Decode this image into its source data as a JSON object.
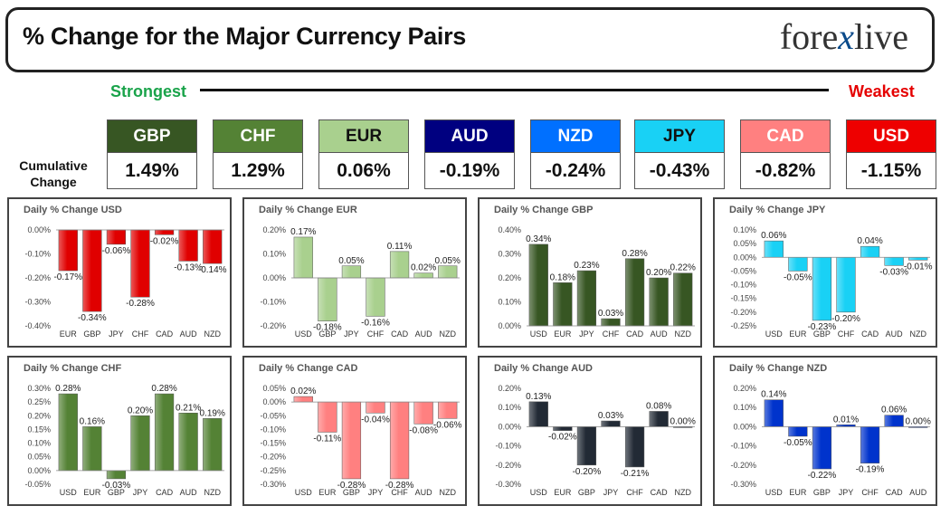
{
  "header": {
    "title": "% Change for the Major Currency Pairs",
    "logo_left": "fore",
    "logo_x": "x",
    "logo_right": "live"
  },
  "scale": {
    "strongest": "Strongest",
    "weakest": "Weakest"
  },
  "cumulative": {
    "label_line1": "Cumulative",
    "label_line2": "Change",
    "items": [
      {
        "ccy": "GBP",
        "value": "1.49%",
        "head_bg": "#375623",
        "head_fg": "#ffffff",
        "val_fg": "#111111"
      },
      {
        "ccy": "CHF",
        "value": "1.29%",
        "head_bg": "#548235",
        "head_fg": "#ffffff",
        "val_fg": "#111111"
      },
      {
        "ccy": "EUR",
        "value": "0.06%",
        "head_bg": "#a9d08e",
        "head_fg": "#111111",
        "val_fg": "#111111"
      },
      {
        "ccy": "AUD",
        "value": "-0.19%",
        "head_bg": "#000080",
        "head_fg": "#ffffff",
        "val_fg": "#111111"
      },
      {
        "ccy": "NZD",
        "value": "-0.24%",
        "head_bg": "#0070ff",
        "head_fg": "#ffffff",
        "val_fg": "#111111"
      },
      {
        "ccy": "JPY",
        "value": "-0.43%",
        "head_bg": "#19d1f5",
        "head_fg": "#111111",
        "val_fg": "#111111"
      },
      {
        "ccy": "CAD",
        "value": "-0.82%",
        "head_bg": "#ff8080",
        "head_fg": "#ffffff",
        "val_fg": "#111111"
      },
      {
        "ccy": "USD",
        "value": "-1.15%",
        "head_bg": "#ee0000",
        "head_fg": "#ffffff",
        "val_fg": "#111111"
      }
    ]
  },
  "chart_data": [
    {
      "type": "bar",
      "title": "Daily % Change USD",
      "color": "#e00000",
      "categories": [
        "EUR",
        "GBP",
        "JPY",
        "CHF",
        "CAD",
        "AUD",
        "NZD"
      ],
      "values": [
        -0.17,
        -0.34,
        -0.06,
        -0.28,
        -0.02,
        -0.13,
        -0.14
      ],
      "labels": [
        "-0.17%",
        "-0.34%",
        "-0.06%",
        "-0.28%",
        "-0.02%",
        "-0.13%",
        "-0.14%"
      ],
      "ylim": [
        -0.4,
        0.0
      ],
      "yticks": [
        0.0,
        -0.1,
        -0.2,
        -0.3,
        -0.4
      ],
      "ytick_labels": [
        "0.00%",
        "-0.10%",
        "-0.20%",
        "-0.30%",
        "-0.40%"
      ]
    },
    {
      "type": "bar",
      "title": "Daily % Change EUR",
      "color": "#a9d08e",
      "categories": [
        "USD",
        "GBP",
        "JPY",
        "CHF",
        "CAD",
        "AUD",
        "NZD"
      ],
      "values": [
        0.17,
        -0.18,
        0.05,
        -0.16,
        0.11,
        0.02,
        0.05
      ],
      "labels": [
        "0.17%",
        "-0.18%",
        "0.05%",
        "-0.16%",
        "0.11%",
        "0.02%",
        "0.05%"
      ],
      "ylim": [
        -0.2,
        0.2
      ],
      "yticks": [
        0.2,
        0.1,
        0.0,
        -0.1,
        -0.2
      ],
      "ytick_labels": [
        "0.20%",
        "0.10%",
        "0.00%",
        "-0.10%",
        "-0.20%"
      ]
    },
    {
      "type": "bar",
      "title": "Daily % Change GBP",
      "color": "#375623",
      "categories": [
        "USD",
        "EUR",
        "JPY",
        "CHF",
        "CAD",
        "AUD",
        "NZD"
      ],
      "values": [
        0.34,
        0.18,
        0.23,
        0.03,
        0.28,
        0.2,
        0.22
      ],
      "labels": [
        "0.34%",
        "0.18%",
        "0.23%",
        "0.03%",
        "0.28%",
        "0.20%",
        "0.22%"
      ],
      "ylim": [
        0.0,
        0.4
      ],
      "yticks": [
        0.4,
        0.3,
        0.2,
        0.1,
        0.0
      ],
      "ytick_labels": [
        "0.40%",
        "0.30%",
        "0.20%",
        "0.10%",
        "0.00%"
      ]
    },
    {
      "type": "bar",
      "title": "Daily % Change JPY",
      "color": "#19d1f5",
      "categories": [
        "USD",
        "EUR",
        "GBP",
        "CHF",
        "CAD",
        "AUD",
        "NZD"
      ],
      "values": [
        0.06,
        -0.05,
        -0.23,
        -0.2,
        0.04,
        -0.03,
        -0.01
      ],
      "labels": [
        "0.06%",
        "-0.05%",
        "-0.23%",
        "-0.20%",
        "0.04%",
        "-0.03%",
        "-0.01%"
      ],
      "ylim": [
        -0.25,
        0.1
      ],
      "yticks": [
        0.1,
        0.05,
        0.0,
        -0.05,
        -0.1,
        -0.15,
        -0.2,
        -0.25
      ],
      "ytick_labels": [
        "0.10%",
        "0.05%",
        "0.00%",
        "-0.05%",
        "-0.10%",
        "-0.15%",
        "-0.20%",
        "-0.25%"
      ]
    },
    {
      "type": "bar",
      "title": "Daily % Change CHF",
      "color": "#548235",
      "categories": [
        "USD",
        "EUR",
        "GBP",
        "JPY",
        "CAD",
        "AUD",
        "NZD"
      ],
      "values": [
        0.28,
        0.16,
        -0.03,
        0.2,
        0.28,
        0.21,
        0.19
      ],
      "labels": [
        "0.28%",
        "0.16%",
        "-0.03%",
        "0.20%",
        "0.28%",
        "0.21%",
        "0.19%"
      ],
      "ylim": [
        -0.05,
        0.3
      ],
      "yticks": [
        0.3,
        0.25,
        0.2,
        0.15,
        0.1,
        0.05,
        0.0,
        -0.05
      ],
      "ytick_labels": [
        "0.30%",
        "0.25%",
        "0.20%",
        "0.15%",
        "0.10%",
        "0.05%",
        "0.00%",
        "-0.05%"
      ]
    },
    {
      "type": "bar",
      "title": "Daily % Change CAD",
      "color": "#ff8080",
      "categories": [
        "USD",
        "EUR",
        "GBP",
        "JPY",
        "CHF",
        "AUD",
        "NZD"
      ],
      "values": [
        0.02,
        -0.11,
        -0.28,
        -0.04,
        -0.28,
        -0.08,
        -0.06
      ],
      "labels": [
        "0.02%",
        "-0.11%",
        "-0.28%",
        "-0.04%",
        "-0.28%",
        "-0.08%",
        "-0.06%"
      ],
      "ylim": [
        -0.3,
        0.05
      ],
      "yticks": [
        0.05,
        0.0,
        -0.05,
        -0.1,
        -0.15,
        -0.2,
        -0.25,
        -0.3
      ],
      "ytick_labels": [
        "0.05%",
        "0.00%",
        "-0.05%",
        "-0.10%",
        "-0.15%",
        "-0.20%",
        "-0.25%",
        "-0.30%"
      ]
    },
    {
      "type": "bar",
      "title": "Daily % Change AUD",
      "color": "#222a35",
      "categories": [
        "USD",
        "EUR",
        "GBP",
        "JPY",
        "CHF",
        "CAD",
        "NZD"
      ],
      "values": [
        0.13,
        -0.02,
        -0.2,
        0.03,
        -0.21,
        0.08,
        0.0
      ],
      "labels": [
        "0.13%",
        "-0.02%",
        "-0.20%",
        "0.03%",
        "-0.21%",
        "0.08%",
        "0.00%"
      ],
      "ylim": [
        -0.3,
        0.2
      ],
      "yticks": [
        0.2,
        0.1,
        0.0,
        -0.1,
        -0.2,
        -0.3
      ],
      "ytick_labels": [
        "0.20%",
        "0.10%",
        "0.00%",
        "-0.10%",
        "-0.20%",
        "-0.30%"
      ]
    },
    {
      "type": "bar",
      "title": "Daily % Change NZD",
      "color": "#0033cc",
      "categories": [
        "USD",
        "EUR",
        "GBP",
        "JPY",
        "CHF",
        "CAD",
        "AUD"
      ],
      "values": [
        0.14,
        -0.05,
        -0.22,
        0.01,
        -0.19,
        0.06,
        0.0
      ],
      "labels": [
        "0.14%",
        "-0.05%",
        "-0.22%",
        "0.01%",
        "-0.19%",
        "0.06%",
        "0.00%"
      ],
      "ylim": [
        -0.3,
        0.2
      ],
      "yticks": [
        0.2,
        0.1,
        0.0,
        -0.1,
        -0.2,
        -0.3
      ],
      "ytick_labels": [
        "0.20%",
        "0.10%",
        "0.00%",
        "-0.10%",
        "-0.20%",
        "-0.30%"
      ]
    }
  ]
}
